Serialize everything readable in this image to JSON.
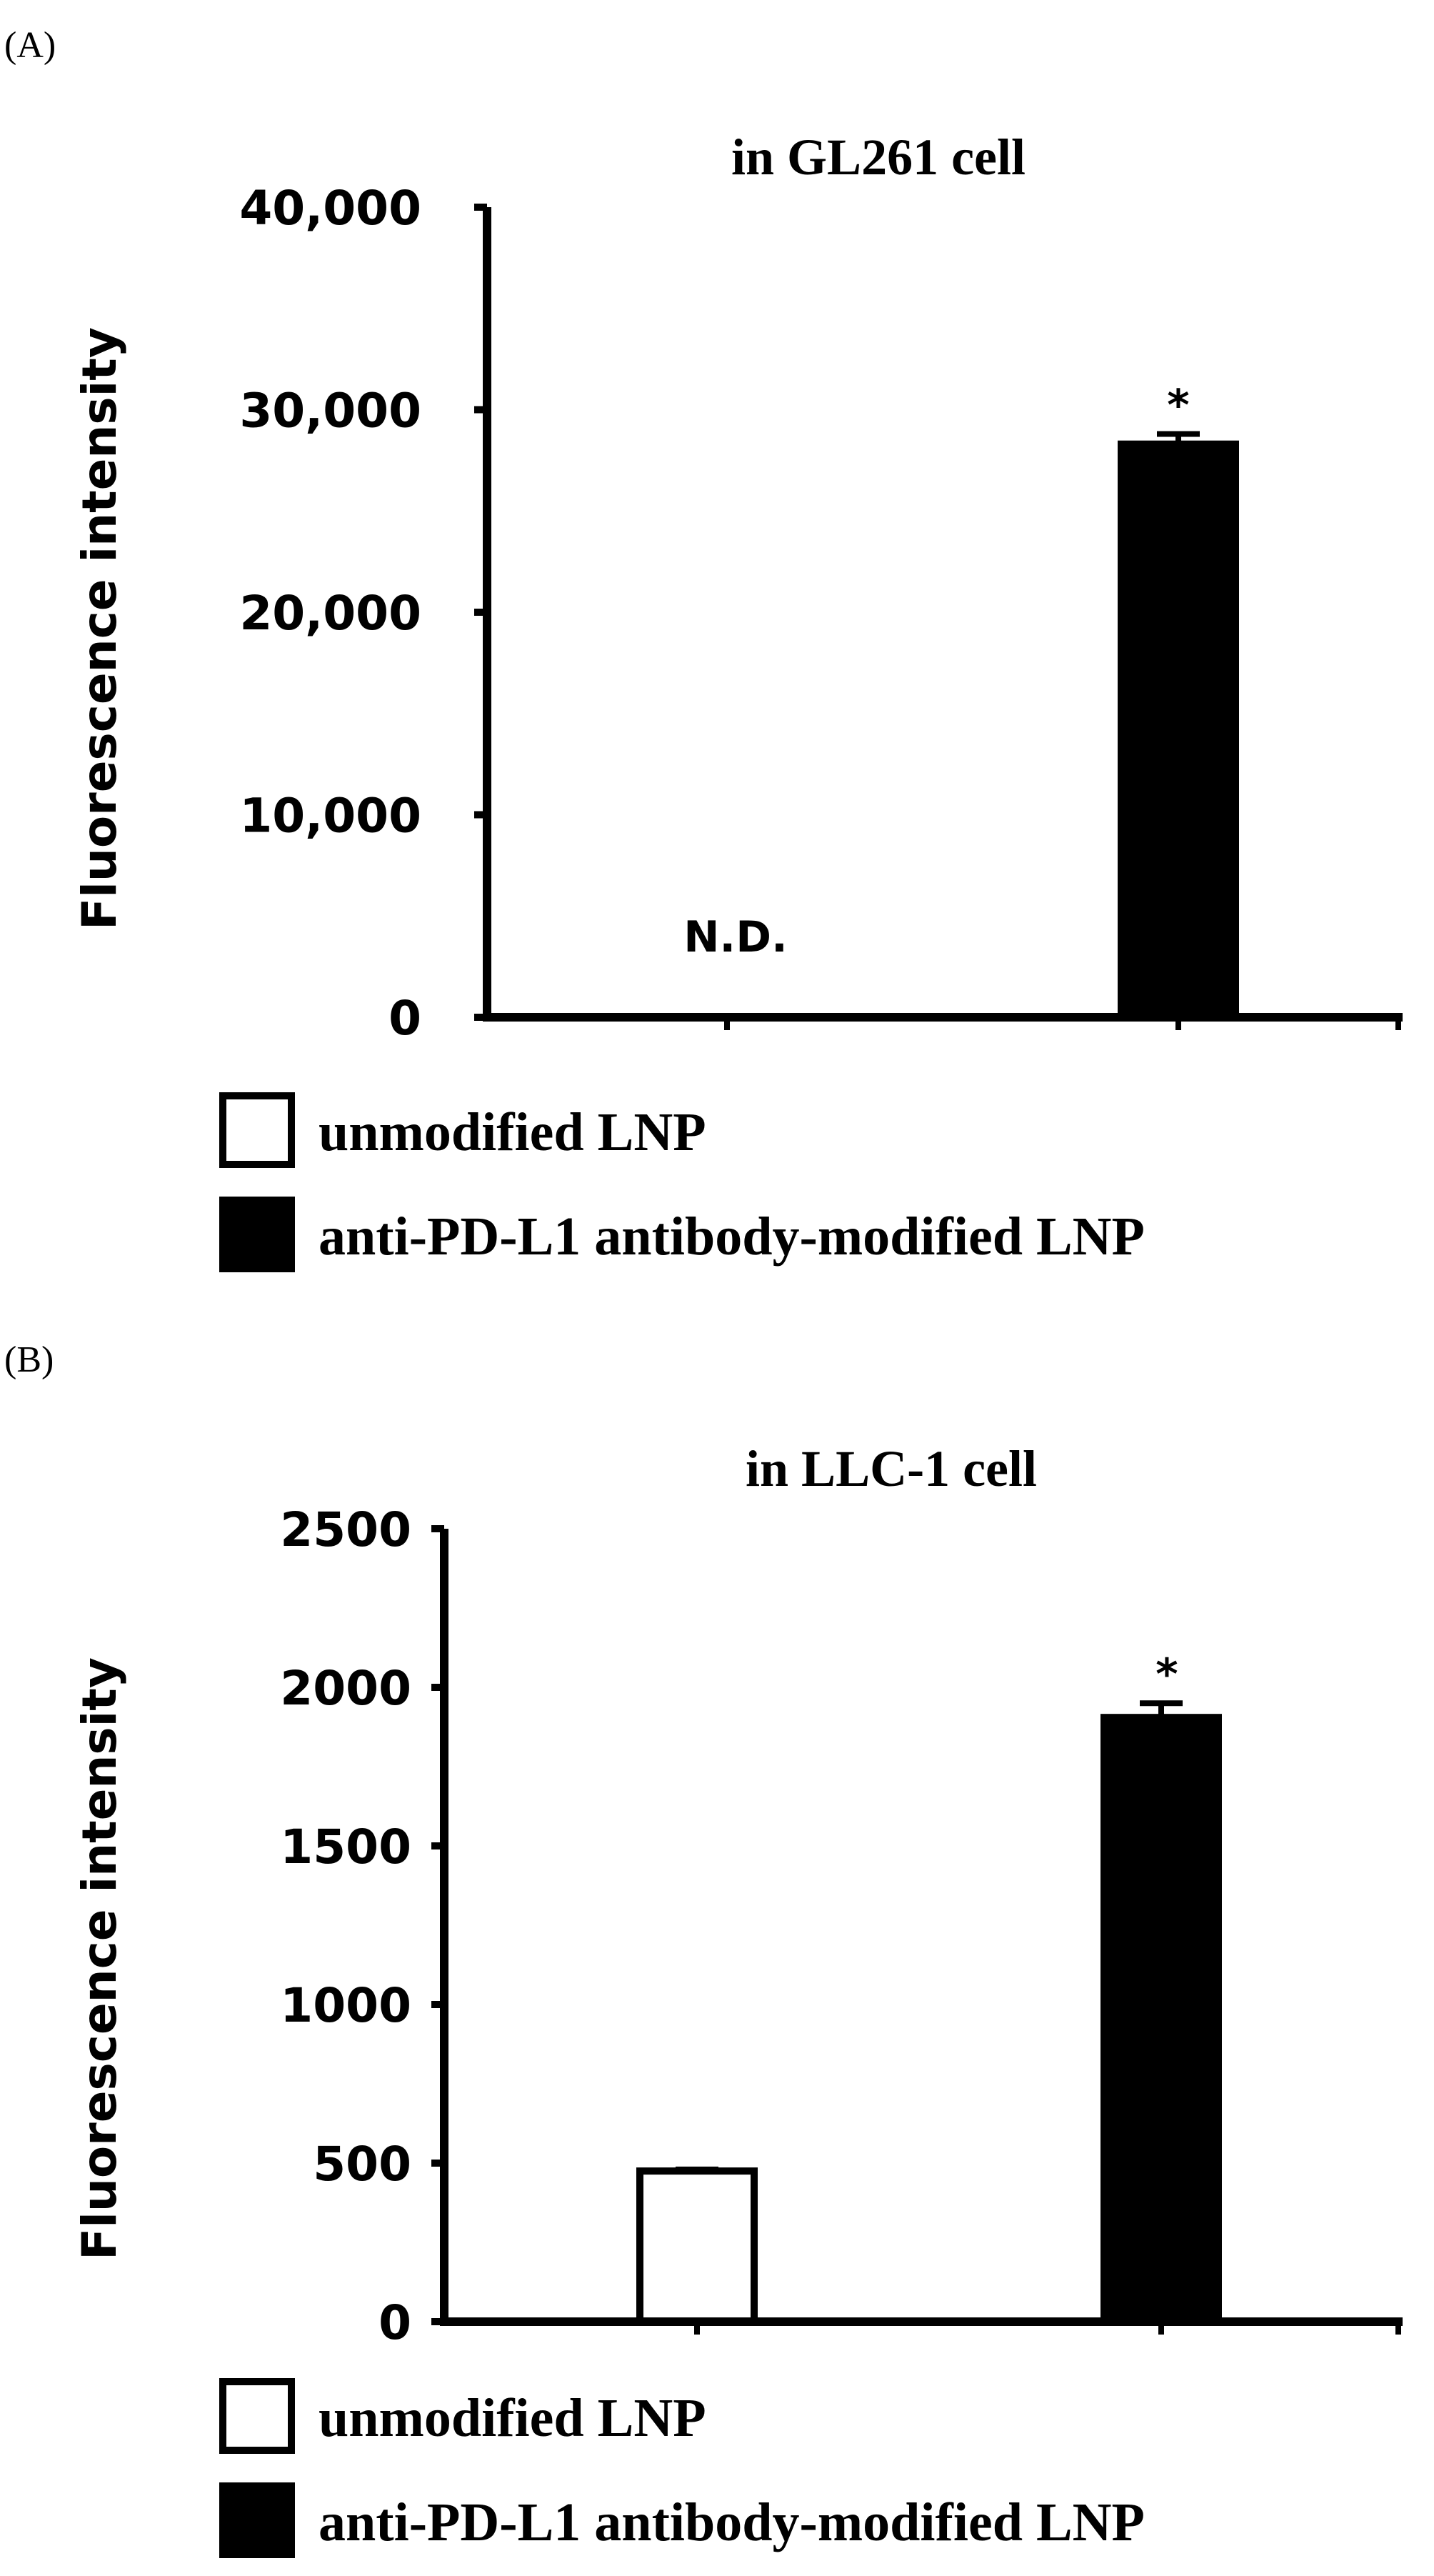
{
  "legend_items": [
    "unmodified LNP",
    "anti-PD-L1 antibody-modified LNP"
  ],
  "chart_data": [
    {
      "type": "bar",
      "panel": "(A)",
      "title": "in GL261 cell",
      "ylabel": "Fluorescence intensity",
      "ylim": [
        0,
        40000
      ],
      "yticks": [
        0,
        10000,
        20000,
        30000,
        40000
      ],
      "ytick_labels": [
        "0",
        "10,000",
        "20,000",
        "30,000",
        "40,000"
      ],
      "categories": [
        "unmodified LNP",
        "anti-PD-L1 antibody-modified LNP"
      ],
      "values": [
        0,
        28300
      ],
      "errors": [
        0,
        500
      ],
      "bar_colors": [
        "#ffffff",
        "#000000"
      ],
      "annotations": [
        "N.D.",
        "*"
      ]
    },
    {
      "type": "bar",
      "panel": "(B)",
      "title": "in LLC-1 cell",
      "ylabel": "Fluorescence intensity",
      "ylim": [
        0,
        2500
      ],
      "yticks": [
        0,
        500,
        1000,
        1500,
        2000,
        2500
      ],
      "ytick_labels": [
        "0",
        "500",
        "1000",
        "1500",
        "2000",
        "2500"
      ],
      "categories": [
        "unmodified LNP",
        "anti-PD-L1 antibody-modified LNP"
      ],
      "values": [
        475,
        1905
      ],
      "errors": [
        5,
        45
      ],
      "bar_colors": [
        "#ffffff",
        "#000000"
      ],
      "annotations": [
        "",
        "*"
      ]
    }
  ]
}
